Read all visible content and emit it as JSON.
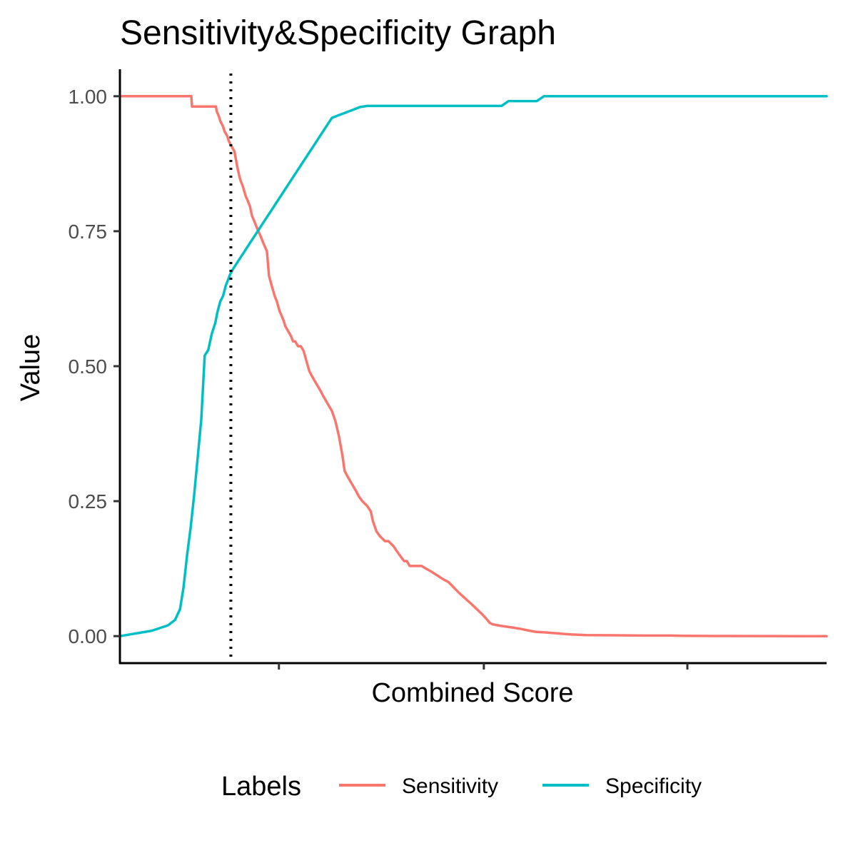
{
  "chart_data": {
    "type": "line",
    "title": "Sensitivity&Specificity Graph",
    "xlabel": "Combined Score",
    "ylabel": "Value",
    "ylim": [
      -0.05,
      1.05
    ],
    "y_ticks": [
      "0.00",
      "0.25",
      "0.50",
      "0.75",
      "1.00"
    ],
    "y_tick_values": [
      0,
      0.25,
      0.5,
      0.75,
      1.0
    ],
    "x_tick_labels_shown": false,
    "grid": false,
    "cutoff_line": {
      "style": "dotted",
      "color": "#000000",
      "x": 0.157
    },
    "legend": {
      "title": "Labels",
      "position": "bottom"
    },
    "series": [
      {
        "name": "Sensitivity",
        "color": "#F8766D",
        "x": [
          0.0,
          0.101,
          0.102,
          0.136,
          0.137,
          0.14,
          0.142,
          0.146,
          0.148,
          0.152,
          0.154,
          0.158,
          0.162,
          0.166,
          0.169,
          0.171,
          0.174,
          0.176,
          0.178,
          0.181,
          0.184,
          0.187,
          0.19,
          0.193,
          0.196,
          0.199,
          0.202,
          0.205,
          0.208,
          0.211,
          0.215,
          0.219,
          0.222,
          0.226,
          0.229,
          0.232,
          0.234,
          0.238,
          0.242,
          0.245,
          0.248,
          0.252,
          0.256,
          0.26,
          0.264,
          0.268,
          0.272,
          0.276,
          0.28,
          0.284,
          0.288,
          0.292,
          0.296,
          0.3,
          0.305,
          0.31,
          0.315,
          0.318,
          0.322,
          0.326,
          0.33,
          0.334,
          0.338,
          0.343,
          0.35,
          0.355,
          0.358,
          0.363,
          0.368,
          0.375,
          0.38,
          0.387,
          0.392,
          0.397,
          0.402,
          0.406,
          0.41,
          0.414,
          0.42,
          0.427,
          0.433,
          0.44,
          0.446,
          0.452,
          0.458,
          0.465,
          0.48,
          0.497,
          0.513,
          0.52,
          0.523,
          0.527,
          0.535,
          0.545,
          0.555,
          0.565,
          0.572,
          0.58,
          0.588,
          0.6,
          0.61,
          0.62,
          0.63,
          0.64,
          0.66,
          0.7,
          0.74,
          0.77,
          0.78,
          0.79,
          0.8,
          0.82,
          0.84,
          0.86,
          0.9,
          0.93,
          0.96,
          1.0
        ],
        "values": [
          1.0,
          1.0,
          0.981,
          0.981,
          0.972,
          0.963,
          0.954,
          0.944,
          0.935,
          0.926,
          0.917,
          0.907,
          0.898,
          0.87,
          0.852,
          0.843,
          0.833,
          0.824,
          0.815,
          0.806,
          0.796,
          0.778,
          0.769,
          0.759,
          0.75,
          0.741,
          0.731,
          0.722,
          0.713,
          0.667,
          0.648,
          0.63,
          0.62,
          0.602,
          0.593,
          0.583,
          0.574,
          0.565,
          0.556,
          0.546,
          0.546,
          0.537,
          0.537,
          0.528,
          0.509,
          0.491,
          0.481,
          0.472,
          0.463,
          0.454,
          0.444,
          0.435,
          0.426,
          0.417,
          0.398,
          0.37,
          0.333,
          0.306,
          0.296,
          0.287,
          0.278,
          0.269,
          0.259,
          0.25,
          0.241,
          0.231,
          0.213,
          0.194,
          0.185,
          0.176,
          0.176,
          0.167,
          0.157,
          0.148,
          0.139,
          0.139,
          0.13,
          0.13,
          0.13,
          0.13,
          0.125,
          0.12,
          0.115,
          0.11,
          0.105,
          0.1,
          0.08,
          0.06,
          0.04,
          0.03,
          0.025,
          0.022,
          0.02,
          0.018,
          0.016,
          0.014,
          0.012,
          0.01,
          0.008,
          0.007,
          0.006,
          0.005,
          0.004,
          0.003,
          0.002,
          0.0015,
          0.001,
          0.001,
          0.001,
          0.0008,
          0.0006,
          0.0004,
          0.0003,
          0.0002,
          0.0001,
          5e-05,
          2e-05,
          0.0
        ]
      },
      {
        "name": "Specificity",
        "color": "#00BFC4",
        "x": [
          0.0,
          0.045,
          0.068,
          0.078,
          0.085,
          0.09,
          0.095,
          0.1,
          0.105,
          0.11,
          0.115,
          0.12,
          0.125,
          0.13,
          0.135,
          0.138,
          0.142,
          0.146,
          0.15,
          0.153,
          0.156,
          0.16,
          0.165,
          0.17,
          0.175,
          0.18,
          0.185,
          0.19,
          0.195,
          0.2,
          0.205,
          0.21,
          0.215,
          0.22,
          0.225,
          0.23,
          0.235,
          0.24,
          0.245,
          0.25,
          0.255,
          0.26,
          0.265,
          0.27,
          0.275,
          0.28,
          0.285,
          0.29,
          0.295,
          0.3,
          0.31,
          0.32,
          0.33,
          0.34,
          0.35,
          0.36,
          0.37,
          0.38,
          0.39,
          0.4,
          0.45,
          0.5,
          0.54,
          0.55,
          0.56,
          0.59,
          0.6,
          0.61,
          0.65,
          0.7,
          0.8,
          1.0
        ],
        "values": [
          0.0,
          0.01,
          0.02,
          0.03,
          0.05,
          0.09,
          0.15,
          0.2,
          0.26,
          0.33,
          0.4,
          0.52,
          0.53,
          0.56,
          0.58,
          0.6,
          0.62,
          0.63,
          0.65,
          0.66,
          0.67,
          0.68,
          0.69,
          0.7,
          0.71,
          0.72,
          0.73,
          0.74,
          0.75,
          0.76,
          0.77,
          0.78,
          0.79,
          0.8,
          0.81,
          0.82,
          0.83,
          0.84,
          0.85,
          0.86,
          0.87,
          0.88,
          0.89,
          0.9,
          0.91,
          0.92,
          0.93,
          0.94,
          0.95,
          0.96,
          0.965,
          0.97,
          0.975,
          0.98,
          0.982,
          0.982,
          0.982,
          0.982,
          0.982,
          0.982,
          0.982,
          0.982,
          0.982,
          0.991,
          0.991,
          0.991,
          1.0,
          1.0,
          1.0,
          1.0,
          1.0,
          1.0
        ]
      }
    ]
  }
}
